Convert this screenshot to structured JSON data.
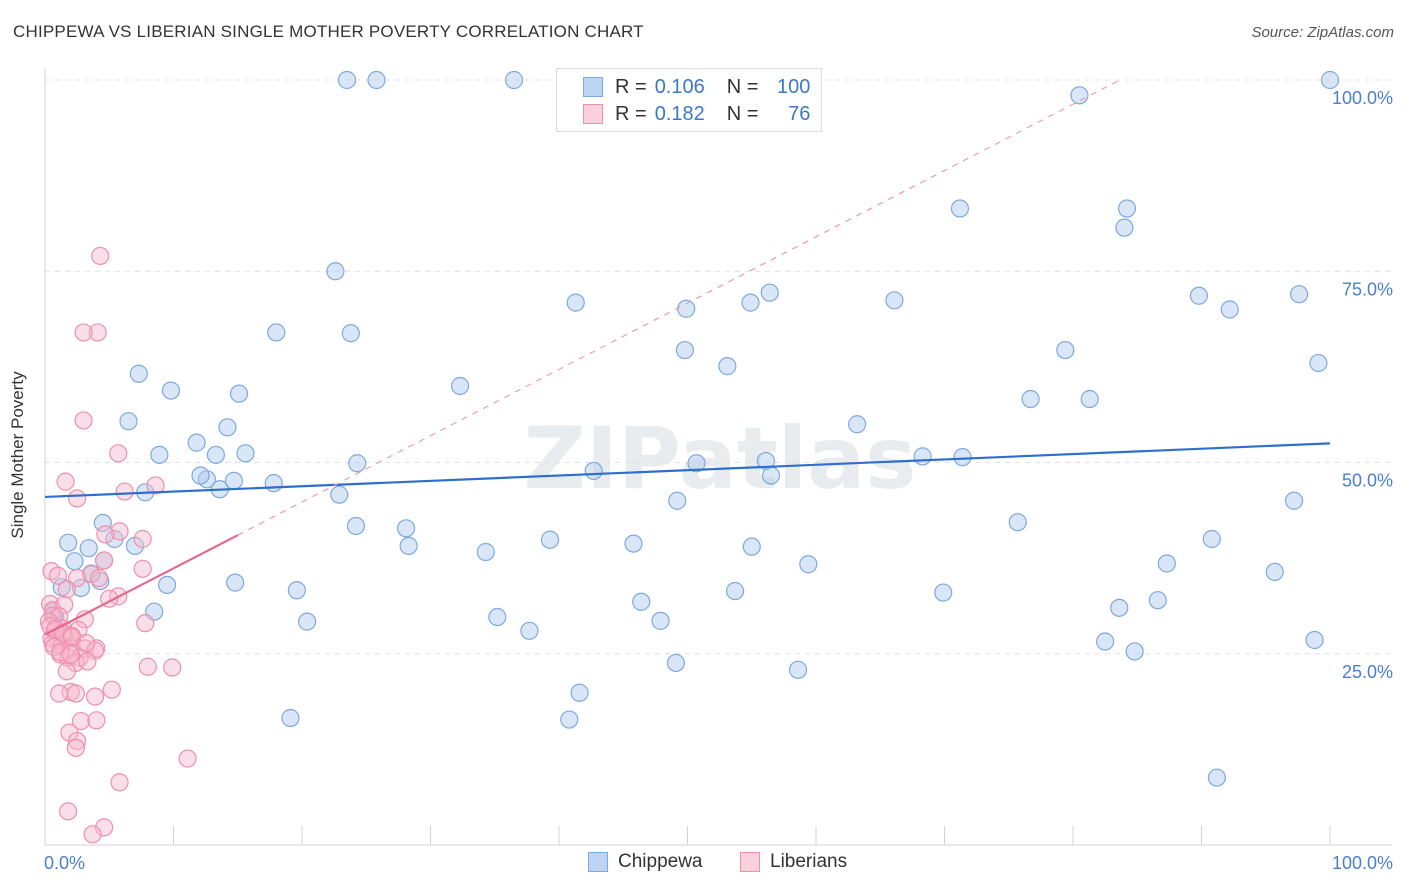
{
  "title": "CHIPPEWA VS LIBERIAN SINGLE MOTHER POVERTY CORRELATION CHART",
  "source": "Source: ZipAtlas.com",
  "watermark": "ZIPatlas",
  "stats": [
    {
      "r_label": "R =",
      "r_value": "0.106",
      "n_label": "N =",
      "n_value": "100"
    },
    {
      "r_label": "R =",
      "r_value": "0.182",
      "n_label": "N =",
      "n_value": "76"
    }
  ],
  "legend": [
    "Chippewa",
    "Liberians"
  ],
  "colors": {
    "chippewa_fill": "#aac8ee",
    "chippewa_stroke": "#7ea9dd",
    "chippewa_line": "#2f6fcc",
    "liberian_fill": "#f7b8cb",
    "liberian_stroke": "#ee8fac",
    "liberian_line": "#e4668e",
    "axis_text": "#4a7fcf"
  },
  "chart_data": {
    "type": "scatter",
    "title": "CHIPPEWA VS LIBERIAN SINGLE MOTHER POVERTY CORRELATION CHART",
    "xlabel": "",
    "ylabel": "Single Mother Poverty",
    "xlim": [
      0,
      100
    ],
    "ylim": [
      0,
      100
    ],
    "x_tick_labels": [
      "0.0%",
      "100.0%"
    ],
    "y_tick_labels": [
      "25.0%",
      "50.0%",
      "75.0%",
      "100.0%"
    ],
    "y_ticks": [
      25,
      50,
      75,
      100
    ],
    "series": [
      {
        "name": "Chippewa",
        "R": 0.106,
        "N": 100,
        "trend": {
          "x0": 0,
          "y0": 45.5,
          "x1": 100,
          "y1": 52.5
        },
        "points": [
          [
            23.5,
            100
          ],
          [
            25.8,
            100
          ],
          [
            36.5,
            100
          ],
          [
            100,
            100
          ],
          [
            80.5,
            98
          ],
          [
            71.2,
            83.2
          ],
          [
            84.2,
            83.2
          ],
          [
            84,
            80.7
          ],
          [
            22.6,
            75
          ],
          [
            41.3,
            70.9
          ],
          [
            49.9,
            70.1
          ],
          [
            56.4,
            72.2
          ],
          [
            54.9,
            70.9
          ],
          [
            66.1,
            71.2
          ],
          [
            89.8,
            71.8
          ],
          [
            92.2,
            70
          ],
          [
            97.6,
            72
          ],
          [
            18,
            67
          ],
          [
            23.8,
            66.9
          ],
          [
            49.8,
            64.7
          ],
          [
            79.4,
            64.7
          ],
          [
            53.1,
            62.6
          ],
          [
            99.1,
            63
          ],
          [
            7.3,
            61.6
          ],
          [
            32.3,
            60
          ],
          [
            9.8,
            59.4
          ],
          [
            15.1,
            59
          ],
          [
            76.7,
            58.3
          ],
          [
            81.3,
            58.3
          ],
          [
            6.5,
            55.4
          ],
          [
            11.8,
            52.6
          ],
          [
            14.2,
            54.6
          ],
          [
            63.2,
            55
          ],
          [
            8.9,
            51
          ],
          [
            13.3,
            51
          ],
          [
            15.6,
            51.2
          ],
          [
            24.3,
            49.9
          ],
          [
            50.7,
            49.9
          ],
          [
            56.1,
            50.2
          ],
          [
            68.3,
            50.8
          ],
          [
            71.4,
            50.7
          ],
          [
            17.8,
            47.3
          ],
          [
            12.6,
            47.8
          ],
          [
            13.6,
            46.5
          ],
          [
            14.7,
            47.6
          ],
          [
            12.1,
            48.3
          ],
          [
            42.7,
            48.9
          ],
          [
            56.5,
            48.3
          ],
          [
            7.8,
            46.1
          ],
          [
            22.9,
            45.8
          ],
          [
            49.2,
            45
          ],
          [
            4.5,
            42.1
          ],
          [
            24.2,
            41.7
          ],
          [
            28.1,
            41.4
          ],
          [
            75.7,
            42.2
          ],
          [
            97.2,
            45
          ],
          [
            1.8,
            39.5
          ],
          [
            3.4,
            38.8
          ],
          [
            5.4,
            40
          ],
          [
            7,
            39.1
          ],
          [
            28.3,
            39.1
          ],
          [
            34.3,
            38.3
          ],
          [
            39.3,
            39.9
          ],
          [
            45.8,
            39.4
          ],
          [
            55,
            39
          ],
          [
            90.8,
            40
          ],
          [
            2.3,
            37.1
          ],
          [
            4.6,
            37.2
          ],
          [
            87.3,
            36.8
          ],
          [
            59.4,
            36.7
          ],
          [
            95.7,
            35.7
          ],
          [
            3.6,
            35.5
          ],
          [
            1.3,
            33.7
          ],
          [
            2.8,
            33.6
          ],
          [
            4.3,
            34.5
          ],
          [
            9.5,
            34
          ],
          [
            14.8,
            34.3
          ],
          [
            19.6,
            33.3
          ],
          [
            46.4,
            31.8
          ],
          [
            53.7,
            33.2
          ],
          [
            69.9,
            33
          ],
          [
            86.6,
            32
          ],
          [
            83.6,
            31
          ],
          [
            0.6,
            30.5
          ],
          [
            8.5,
            30.5
          ],
          [
            35.2,
            29.8
          ],
          [
            37.7,
            28
          ],
          [
            20.4,
            29.2
          ],
          [
            47.9,
            29.3
          ],
          [
            82.5,
            26.6
          ],
          [
            84.8,
            25.3
          ],
          [
            98.8,
            26.8
          ],
          [
            49.1,
            23.8
          ],
          [
            58.6,
            22.9
          ],
          [
            19.1,
            16.6
          ],
          [
            41.6,
            19.9
          ],
          [
            40.8,
            16.4
          ],
          [
            91.2,
            8.8
          ],
          [
            0.7,
            30
          ],
          [
            0.8,
            29.8
          ]
        ]
      },
      {
        "name": "Liberians",
        "R": 0.182,
        "N": 76,
        "trend": {
          "x0": 0,
          "y0": 27.5,
          "x1": 15,
          "y1": 40.5
        },
        "points": [
          [
            4.3,
            77
          ],
          [
            4.1,
            67
          ],
          [
            3,
            67
          ],
          [
            3,
            55.5
          ],
          [
            5.7,
            51.2
          ],
          [
            1.6,
            47.5
          ],
          [
            8.6,
            47
          ],
          [
            6.2,
            46.2
          ],
          [
            2.5,
            45.3
          ],
          [
            5.8,
            41
          ],
          [
            7.6,
            40
          ],
          [
            4.7,
            40.6
          ],
          [
            4.6,
            37.2
          ],
          [
            3.6,
            35.4
          ],
          [
            0.5,
            35.8
          ],
          [
            1,
            35.2
          ],
          [
            2.5,
            34.9
          ],
          [
            4.2,
            34.9
          ],
          [
            7.6,
            36.1
          ],
          [
            1.7,
            33.4
          ],
          [
            5.7,
            32.5
          ],
          [
            5,
            32.2
          ],
          [
            0.4,
            31.5
          ],
          [
            0.6,
            30.7
          ],
          [
            1.5,
            31.4
          ],
          [
            0.6,
            30
          ],
          [
            1.1,
            29.9
          ],
          [
            0.3,
            29.2
          ],
          [
            1.4,
            28.3
          ],
          [
            7.8,
            29
          ],
          [
            3.1,
            29.5
          ],
          [
            2.6,
            28.1
          ],
          [
            0.8,
            27.9
          ],
          [
            1.3,
            27.6
          ],
          [
            1.9,
            27.4
          ],
          [
            0.5,
            27
          ],
          [
            1,
            26.8
          ],
          [
            1.5,
            27.2
          ],
          [
            2.1,
            27.1
          ],
          [
            0.6,
            26.3
          ],
          [
            1.3,
            26
          ],
          [
            2.1,
            25.7
          ],
          [
            3.1,
            25.7
          ],
          [
            4,
            25.7
          ],
          [
            2.7,
            24.5
          ],
          [
            3.9,
            25.4
          ],
          [
            1.2,
            24.9
          ],
          [
            1.8,
            24.5
          ],
          [
            2.4,
            23.8
          ],
          [
            3.3,
            24
          ],
          [
            8,
            23.3
          ],
          [
            9.9,
            23.2
          ],
          [
            1.7,
            22.7
          ],
          [
            2,
            20
          ],
          [
            2.4,
            19.8
          ],
          [
            1.1,
            19.8
          ],
          [
            3.9,
            19.4
          ],
          [
            5.2,
            20.3
          ],
          [
            2.8,
            16.2
          ],
          [
            4,
            16.3
          ],
          [
            1.9,
            14.7
          ],
          [
            2.5,
            13.6
          ],
          [
            2.4,
            12.7
          ],
          [
            11.1,
            11.3
          ],
          [
            5.8,
            8.2
          ],
          [
            1.8,
            4.4
          ],
          [
            4.6,
            2.3
          ],
          [
            3.7,
            1.4
          ],
          [
            0.4,
            28.6
          ],
          [
            0.8,
            28.2
          ],
          [
            1.4,
            27.7
          ],
          [
            2.1,
            27.3
          ],
          [
            0.7,
            25.9
          ],
          [
            1.2,
            25.2
          ],
          [
            2,
            24.9
          ],
          [
            3.2,
            26.4
          ]
        ]
      }
    ]
  }
}
